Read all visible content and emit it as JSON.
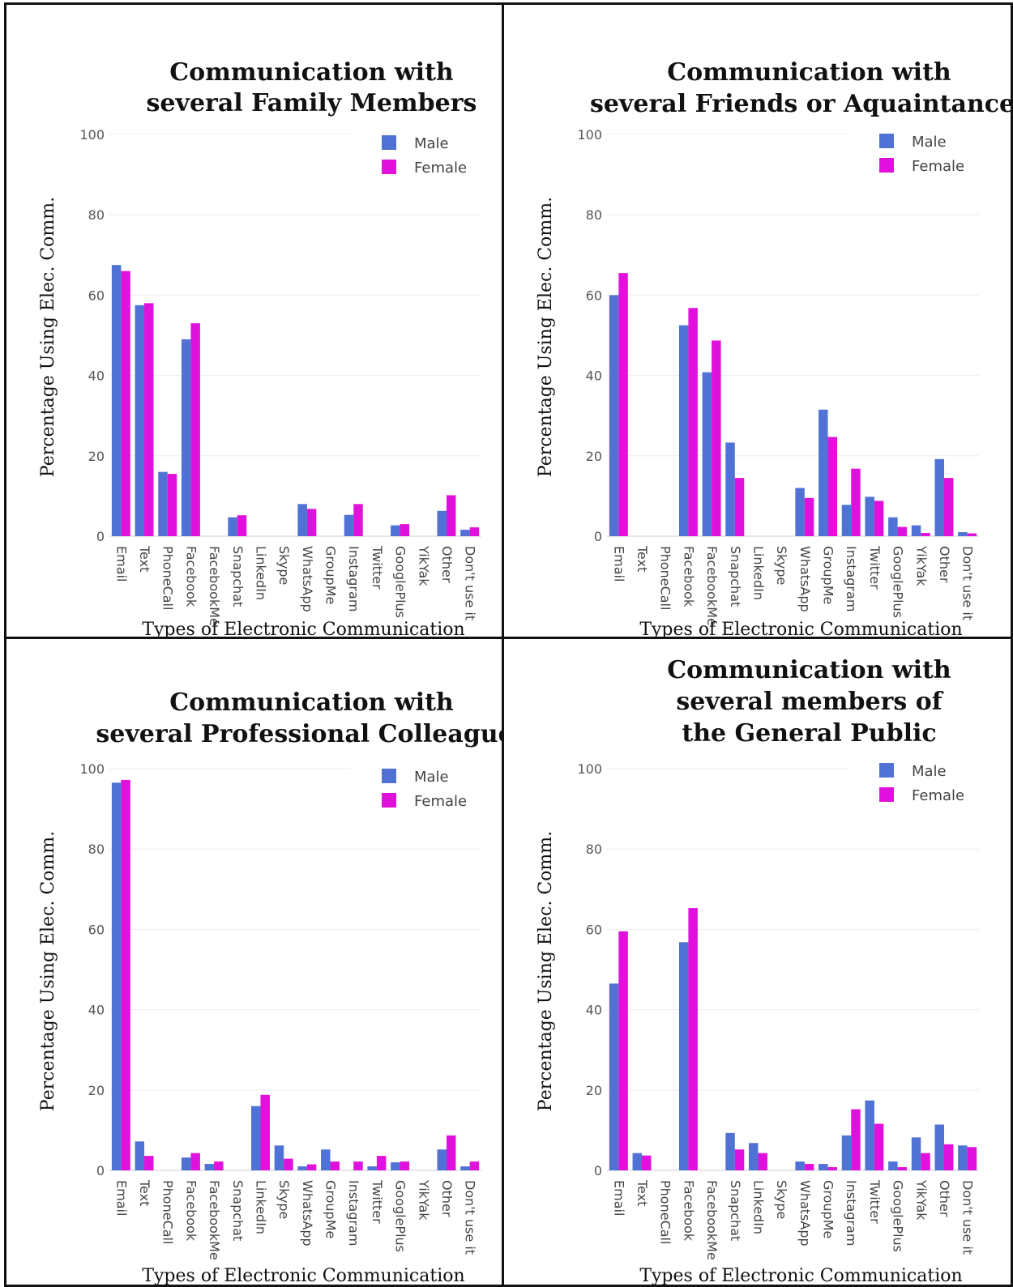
{
  "colors": {
    "male": "#4f72d4",
    "female": "#e011dc",
    "grid": "#eeeeee",
    "border": "#111111"
  },
  "chart_data": [
    {
      "type": "bar",
      "title": [
        "Communication with",
        "several Family Members"
      ],
      "xlabel": "Types of Electronic Communication",
      "ylabel": "Percentage Using Elec. Comm.",
      "ylim": [
        0,
        100
      ],
      "yticks": [
        "0",
        "20",
        "40",
        "60",
        "80",
        "100"
      ],
      "legend_position": "top-right",
      "categories": [
        "Email",
        "Text",
        "PhoneCall",
        "Facebook",
        "FacebookMe",
        "Snapchat",
        "LinkedIn",
        "Skype",
        "WhatsApp",
        "GroupMe",
        "Instagram",
        "Twitter",
        "GooglePlus",
        "YikYak",
        "Other",
        "Don't use it"
      ],
      "series": [
        {
          "name": "Male",
          "values": [
            67.5,
            57.5,
            16,
            49,
            0,
            4.7,
            0,
            0,
            8,
            0,
            5.3,
            0,
            2.7,
            0,
            6.3,
            1.6
          ]
        },
        {
          "name": "Female",
          "values": [
            66,
            58,
            15.5,
            53,
            0,
            5.2,
            0,
            0,
            6.8,
            0,
            8,
            0,
            3,
            0,
            10.2,
            2.2
          ]
        }
      ]
    },
    {
      "type": "bar",
      "title": [
        "Communication with",
        "several Friends or Aquaintances"
      ],
      "xlabel": "Types of Electronic Communication",
      "ylabel": "Percentage Using Elec. Comm.",
      "ylim": [
        0,
        100
      ],
      "yticks": [
        "0",
        "20",
        "40",
        "60",
        "80",
        "100"
      ],
      "legend_position": "top-right",
      "categories": [
        "Email",
        "Text",
        "PhoneCall",
        "Facebook",
        "FacebookMe",
        "Snapchat",
        "LinkedIn",
        "Skype",
        "WhatsApp",
        "GroupMe",
        "Instagram",
        "Twitter",
        "GooglePlus",
        "YikYak",
        "Other",
        "Don't use it"
      ],
      "series": [
        {
          "name": "Male",
          "values": [
            60,
            0,
            0,
            52.5,
            40.8,
            23.3,
            0,
            0,
            12,
            31.5,
            7.8,
            9.8,
            4.7,
            2.7,
            19.2,
            1
          ]
        },
        {
          "name": "Female",
          "values": [
            65.5,
            0,
            0,
            56.8,
            48.7,
            14.5,
            0,
            0,
            9.5,
            24.7,
            16.8,
            8.8,
            2.3,
            0.8,
            14.5,
            0.7
          ]
        }
      ]
    },
    {
      "type": "bar",
      "title": [
        "Communication with",
        "several Professional Colleagues"
      ],
      "xlabel": "Types of Electronic Communication",
      "ylabel": "Percentage Using Elec. Comm.",
      "ylim": [
        0,
        100
      ],
      "yticks": [
        "0",
        "20",
        "40",
        "60",
        "80",
        "100"
      ],
      "legend_position": "top-right",
      "categories": [
        "Email",
        "Text",
        "PhoneCall",
        "Facebook",
        "FacebookMe",
        "Snapchat",
        "LinkedIn",
        "Skype",
        "WhatsApp",
        "GroupMe",
        "Instagram",
        "Twitter",
        "GooglePlus",
        "YikYak",
        "Other",
        "Don't use it"
      ],
      "series": [
        {
          "name": "Male",
          "values": [
            96.5,
            7.2,
            0,
            3.2,
            1.6,
            0,
            16,
            6.2,
            1,
            5.2,
            0,
            1,
            2,
            0,
            5.2,
            1
          ]
        },
        {
          "name": "Female",
          "values": [
            97.2,
            3.6,
            0,
            4.3,
            2.2,
            0,
            18.8,
            2.9,
            1.5,
            2.2,
            2.2,
            3.6,
            2.2,
            0,
            8.7,
            2.2
          ]
        }
      ]
    },
    {
      "type": "bar",
      "title": [
        "Communication with",
        "several members of",
        "the General Public"
      ],
      "xlabel": "Types of Electronic Communication",
      "ylabel": "Percentage Using Elec. Comm.",
      "ylim": [
        0,
        100
      ],
      "yticks": [
        "0",
        "20",
        "40",
        "60",
        "80",
        "100"
      ],
      "legend_position": "top-right",
      "categories": [
        "Email",
        "Text",
        "PhoneCall",
        "Facebook",
        "FacebookMe",
        "Snapchat",
        "LinkedIn",
        "Skype",
        "WhatsApp",
        "GroupMe",
        "Instagram",
        "Twitter",
        "GooglePlus",
        "YikYak",
        "Other",
        "Don't use it"
      ],
      "series": [
        {
          "name": "Male",
          "values": [
            46.5,
            4.3,
            0,
            56.8,
            0,
            9.3,
            6.8,
            0,
            2.2,
            1.6,
            8.7,
            17.4,
            2.2,
            8.2,
            11.4,
            6.2
          ]
        },
        {
          "name": "Female",
          "values": [
            59.5,
            3.7,
            0,
            65.3,
            0,
            5.2,
            4.3,
            0,
            1.6,
            0.8,
            15.2,
            11.6,
            0.8,
            4.3,
            6.5,
            5.8
          ]
        }
      ]
    }
  ]
}
